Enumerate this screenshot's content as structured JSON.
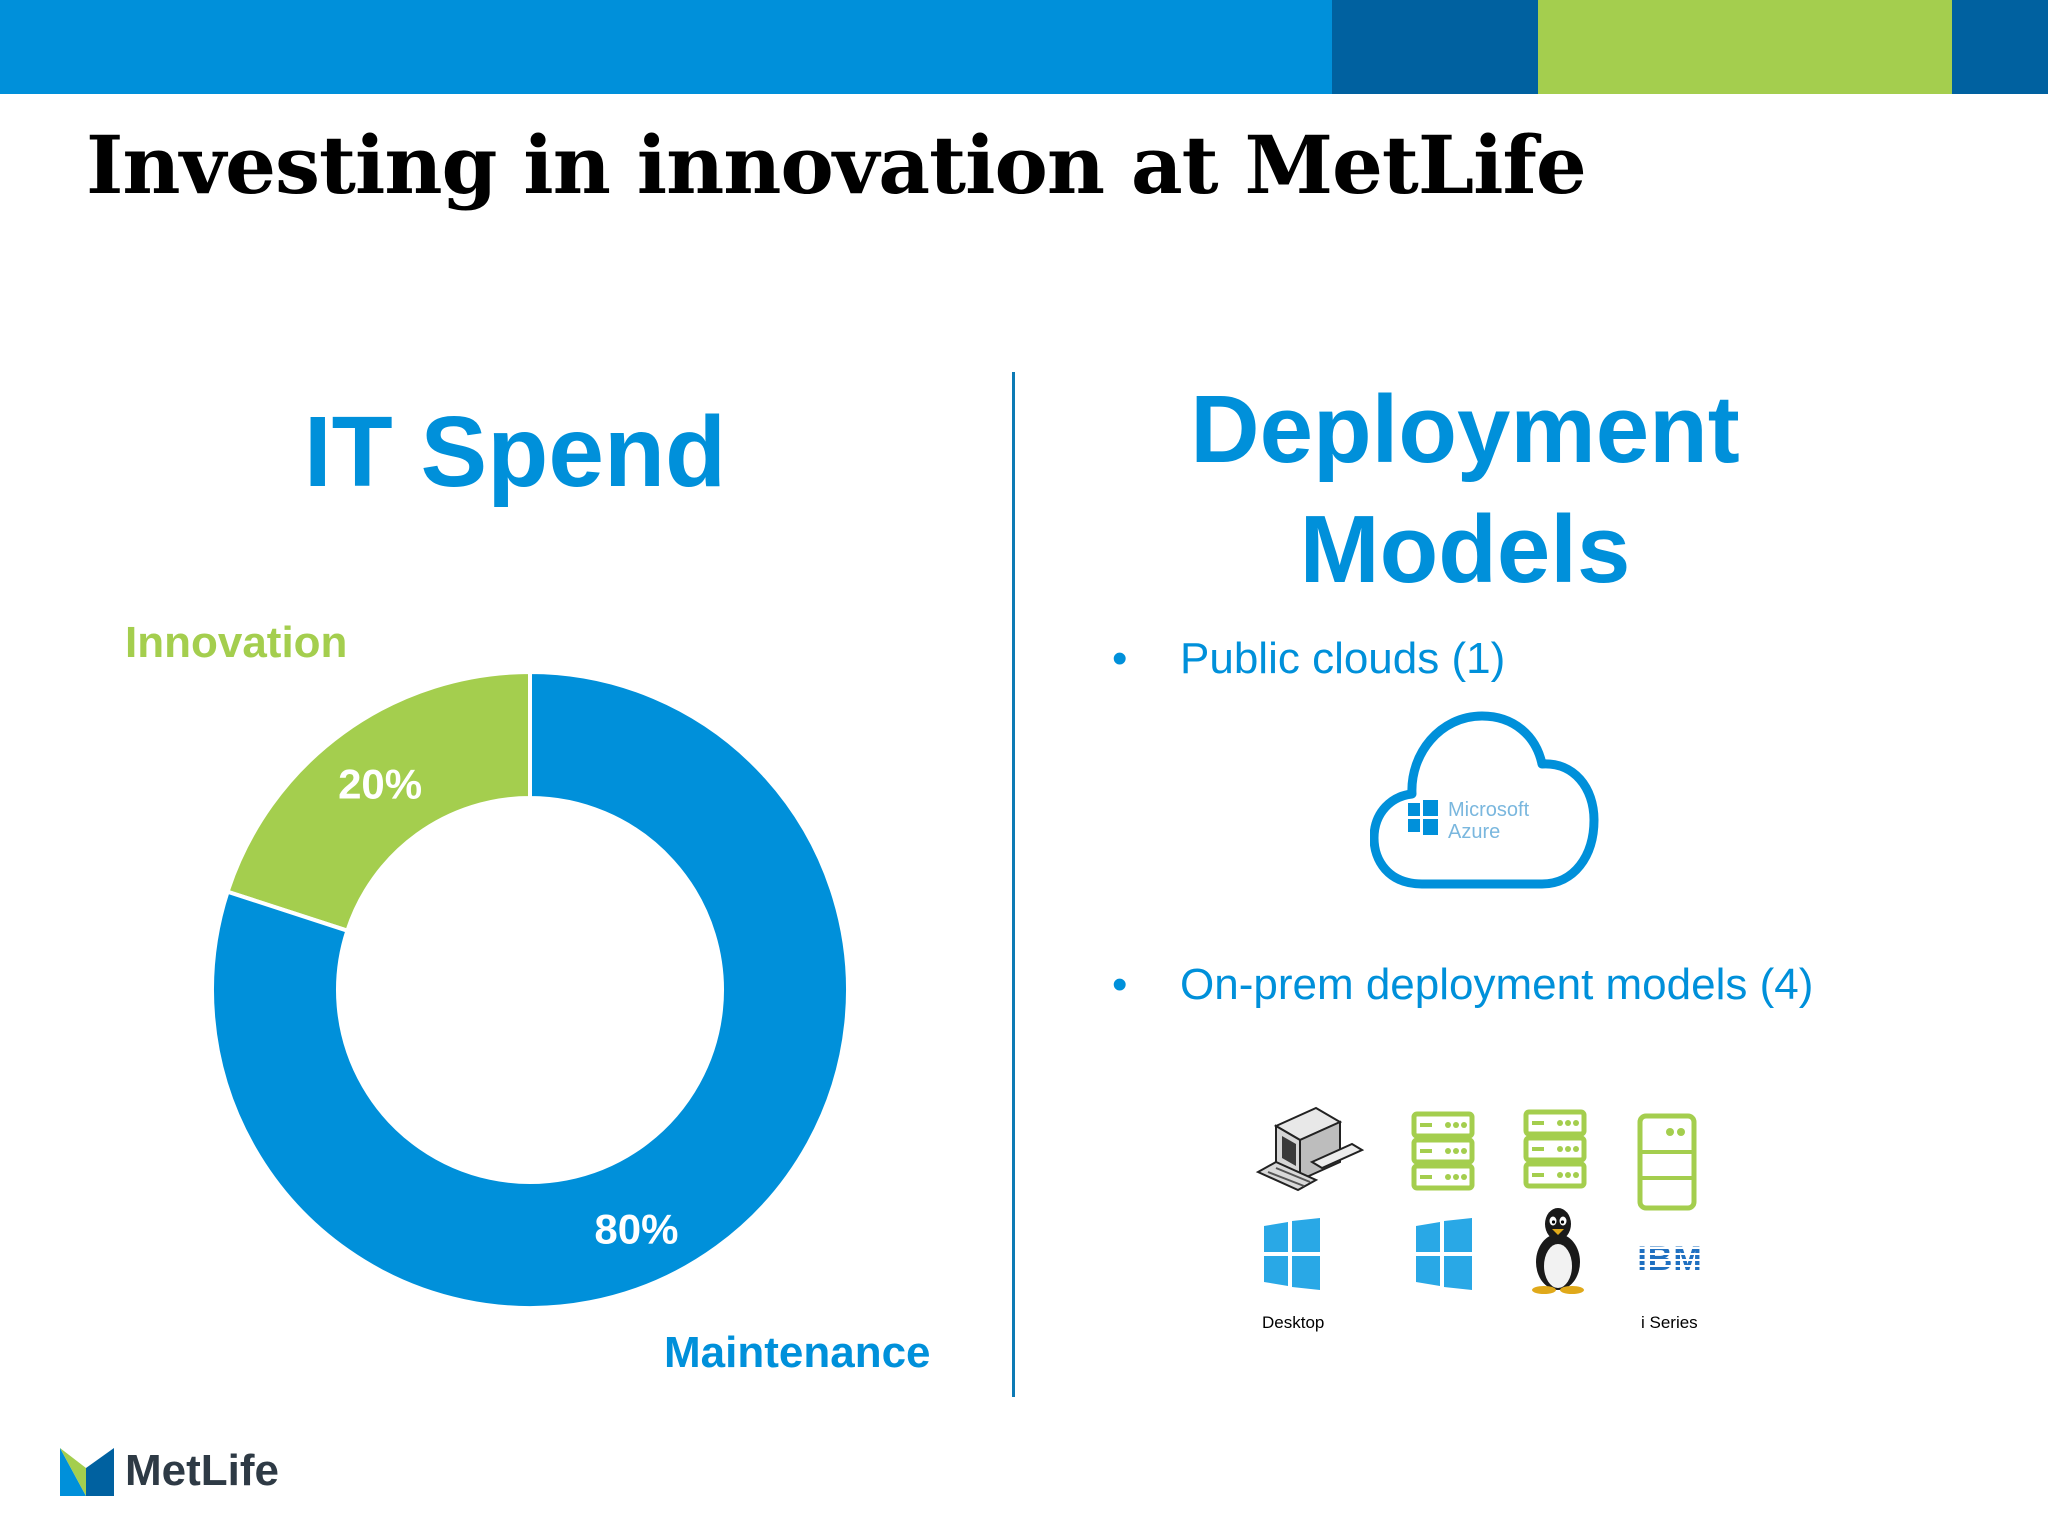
{
  "colors": {
    "blue": "#0090da",
    "dark_blue": "#0061a0",
    "green": "#a4ce4e",
    "divider": "#0c7ab5"
  },
  "title": "Investing in innovation at MetLife",
  "left_panel": {
    "heading": "IT Spend"
  },
  "chart_data": {
    "type": "pie",
    "title": "IT Spend",
    "variant": "donut",
    "categories": [
      "Innovation",
      "Maintenance"
    ],
    "values": [
      20,
      80
    ],
    "data_labels": [
      "20%",
      "80%"
    ],
    "colors": [
      "#a4ce4e",
      "#0090da"
    ],
    "legend": "none"
  },
  "right_panel": {
    "heading_line1": "Deployment",
    "heading_line2": "Models",
    "bullets": [
      {
        "marker": "•",
        "text": "Public clouds (1)"
      },
      {
        "marker": "•",
        "text": "On-prem deployment models (4)"
      }
    ],
    "cloud": {
      "line1": "Microsoft",
      "line2": "Azure",
      "icon": "windows-icon"
    },
    "platforms": [
      {
        "icons": [
          "desktop-computer-icon",
          "windows-icon"
        ],
        "caption": "Desktop"
      },
      {
        "icons": [
          "server-icon",
          "windows-icon"
        ],
        "caption": ""
      },
      {
        "icons": [
          "server-icon",
          "linux-penguin-icon"
        ],
        "caption": ""
      },
      {
        "icons": [
          "server-tower-icon",
          "ibm-logo-icon"
        ],
        "caption": "i Series"
      }
    ],
    "ibm_logo_text": "IBM"
  },
  "footer": {
    "logo_text": "MetLife",
    "logo_icon": "metlife-m-icon"
  }
}
